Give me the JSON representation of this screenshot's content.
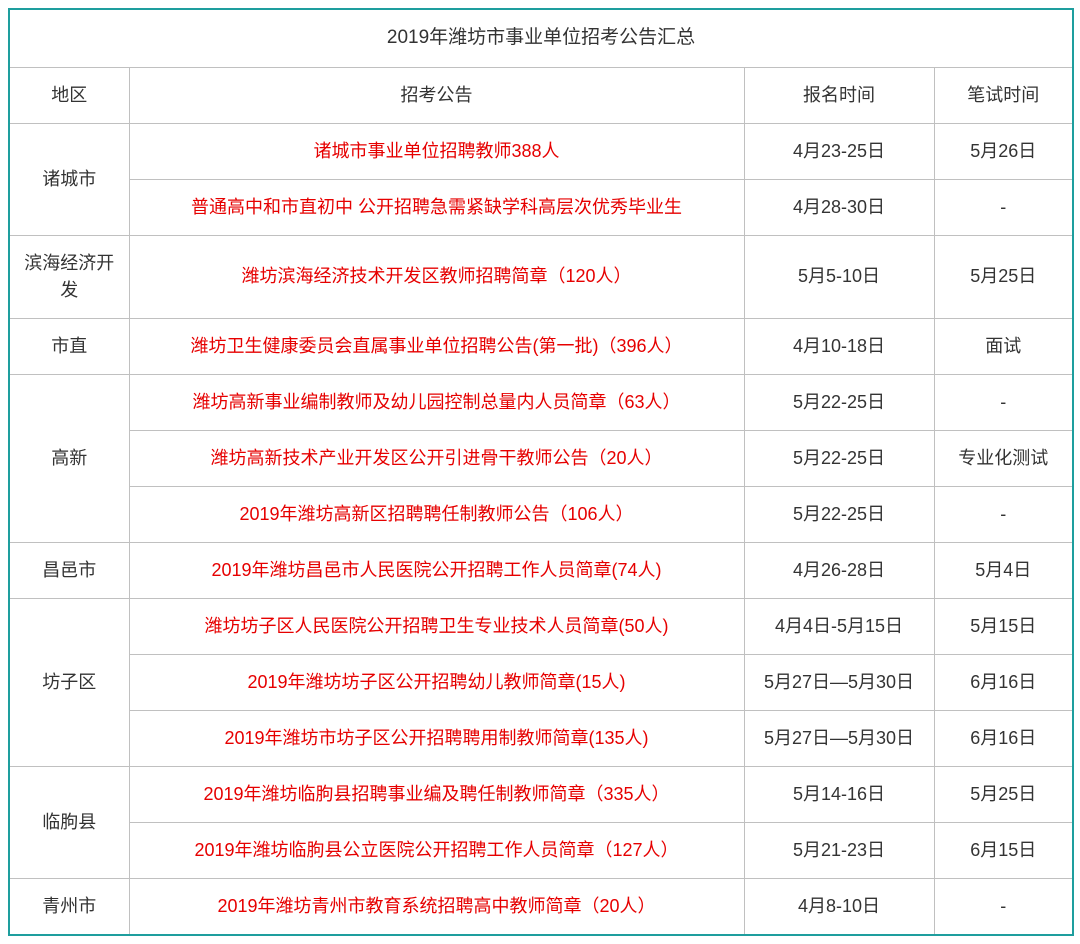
{
  "title": "2019年潍坊市事业单位招考公告汇总",
  "columns": [
    "地区",
    "招考公告",
    "报名时间",
    "笔试时间"
  ],
  "regions": [
    {
      "name": "诸城市",
      "rows": [
        {
          "notice": "诸城市事业单位招聘教师388人",
          "reg": "4月23-25日",
          "exam": "5月26日"
        },
        {
          "notice": "普通高中和市直初中 公开招聘急需紧缺学科高层次优秀毕业生",
          "reg": "4月28-30日",
          "exam": "-"
        }
      ]
    },
    {
      "name": "滨海经济开发",
      "rows": [
        {
          "notice": "潍坊滨海经济技术开发区教师招聘简章（120人）",
          "reg": "5月5-10日",
          "exam": "5月25日"
        }
      ]
    },
    {
      "name": "市直",
      "rows": [
        {
          "notice": "潍坊卫生健康委员会直属事业单位招聘公告(第一批)（396人）",
          "reg": "4月10-18日",
          "exam": "面试"
        }
      ]
    },
    {
      "name": "高新",
      "rows": [
        {
          "notice": "潍坊高新事业编制教师及幼儿园控制总量内人员简章（63人）",
          "reg": "5月22-25日",
          "exam": "-"
        },
        {
          "notice": "潍坊高新技术产业开发区公开引进骨干教师公告（20人）",
          "reg": "5月22-25日",
          "exam": "专业化测试"
        },
        {
          "notice": "2019年潍坊高新区招聘聘任制教师公告（106人）",
          "reg": "5月22-25日",
          "exam": "-"
        }
      ]
    },
    {
      "name": "昌邑市",
      "rows": [
        {
          "notice": "2019年潍坊昌邑市人民医院公开招聘工作人员简章(74人)",
          "reg": "4月26-28日",
          "exam": "5月4日"
        }
      ]
    },
    {
      "name": "坊子区",
      "rows": [
        {
          "notice": "潍坊坊子区人民医院公开招聘卫生专业技术人员简章(50人)",
          "reg": "4月4日-5月15日",
          "exam": "5月15日"
        },
        {
          "notice": "2019年潍坊坊子区公开招聘幼儿教师简章(15人)",
          "reg": "5月27日—5月30日",
          "exam": "6月16日"
        },
        {
          "notice": "2019年潍坊市坊子区公开招聘聘用制教师简章(135人)",
          "reg": "5月27日—5月30日",
          "exam": "6月16日"
        }
      ]
    },
    {
      "name": "临朐县",
      "rows": [
        {
          "notice": "2019年潍坊临朐县招聘事业编及聘任制教师简章（335人）",
          "reg": "5月14-16日",
          "exam": "5月25日"
        },
        {
          "notice": "2019年潍坊临朐县公立医院公开招聘工作人员简章（127人）",
          "reg": "5月21-23日",
          "exam": "6月15日"
        }
      ]
    },
    {
      "name": "青州市",
      "rows": [
        {
          "notice": "2019年潍坊青州市教育系统招聘高中教师简章（20人）",
          "reg": "4月8-10日",
          "exam": "-"
        }
      ]
    }
  ],
  "colors": {
    "border_outer": "#1e9e9e",
    "border_inner": "#c0c0c0",
    "text": "#333333",
    "link": "#e60000",
    "background": "#ffffff"
  }
}
